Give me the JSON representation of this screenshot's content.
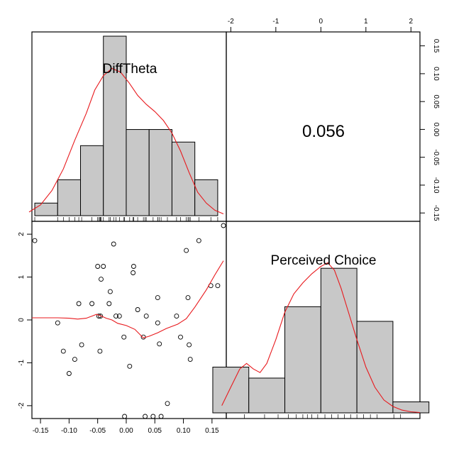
{
  "chart_data": {
    "type": "scatter-matrix",
    "variables": [
      "DiffTheta",
      "Perceived Choice"
    ],
    "correlation": "0.056",
    "x_axis_top": {
      "ticks": [
        -2,
        -1,
        0,
        1,
        2
      ],
      "labels": [
        "-2",
        "-1",
        "0",
        "1",
        "2"
      ],
      "range": [
        -2.1,
        2.2
      ]
    },
    "y_axis_right": {
      "ticks": [
        -0.15,
        -0.1,
        -0.05,
        0.0,
        0.05,
        0.1,
        0.15
      ],
      "labels": [
        "-0.15",
        "-0.10",
        "-0.05",
        "0.00",
        "0.05",
        "0.10",
        "0.15"
      ],
      "range": [
        -0.165,
        0.175
      ]
    },
    "x_axis_bottom": {
      "ticks": [
        -0.15,
        -0.1,
        -0.05,
        0.0,
        0.05,
        0.1,
        0.15
      ],
      "labels": [
        "-0.15",
        "-0.10",
        "-0.05",
        "0.00",
        "0.05",
        "0.10",
        "0.15"
      ],
      "range": [
        -0.165,
        0.175
      ]
    },
    "y_axis_left": {
      "ticks": [
        -2,
        -1,
        0,
        1,
        2
      ],
      "labels": [
        "-2",
        "-1",
        "0",
        "1",
        "2"
      ],
      "range": [
        -2.3,
        2.3
      ]
    },
    "hist_difftheta": {
      "breaks": [
        -0.16,
        -0.12,
        -0.08,
        -0.04,
        0.0,
        0.04,
        0.08,
        0.12,
        0.16
      ],
      "relative_heights": [
        0.07,
        0.2,
        0.39,
        1.0,
        0.48,
        0.48,
        0.41,
        0.2
      ]
    },
    "hist_perceived": {
      "breaks": [
        -2.4,
        -1.6,
        -0.8,
        0.0,
        0.8,
        1.6,
        2.4
      ],
      "relative_heights": [
        0.25,
        0.19,
        0.58,
        0.79,
        0.5,
        0.06
      ]
    },
    "points": [
      [
        -0.16,
        1.85
      ],
      [
        -0.12,
        -0.07
      ],
      [
        -0.11,
        -0.73
      ],
      [
        -0.1,
        -1.25
      ],
      [
        -0.09,
        -0.92
      ],
      [
        -0.083,
        0.38
      ],
      [
        -0.078,
        -0.58
      ],
      [
        -0.06,
        0.38
      ],
      [
        -0.05,
        1.25
      ],
      [
        -0.048,
        0.09
      ],
      [
        -0.046,
        -0.73
      ],
      [
        -0.045,
        0.09
      ],
      [
        -0.044,
        0.95
      ],
      [
        -0.04,
        1.25
      ],
      [
        -0.03,
        0.38
      ],
      [
        -0.028,
        0.66
      ],
      [
        -0.022,
        1.77
      ],
      [
        -0.018,
        0.09
      ],
      [
        -0.012,
        0.09
      ],
      [
        -0.004,
        -0.4
      ],
      [
        -0.003,
        -2.25
      ],
      [
        0.006,
        -1.08
      ],
      [
        0.012,
        1.1
      ],
      [
        0.013,
        1.25
      ],
      [
        0.02,
        0.24
      ],
      [
        0.03,
        -0.4
      ],
      [
        0.033,
        -2.25
      ],
      [
        0.035,
        0.09
      ],
      [
        0.047,
        -2.25
      ],
      [
        0.055,
        0.52
      ],
      [
        0.055,
        -0.07
      ],
      [
        0.058,
        -0.56
      ],
      [
        0.061,
        -2.25
      ],
      [
        0.072,
        -1.95
      ],
      [
        0.088,
        0.09
      ],
      [
        0.095,
        -0.4
      ],
      [
        0.105,
        1.62
      ],
      [
        0.108,
        0.52
      ],
      [
        0.11,
        -0.58
      ],
      [
        0.112,
        -0.92
      ],
      [
        0.127,
        1.85
      ],
      [
        0.148,
        0.8
      ],
      [
        0.16,
        0.8
      ],
      [
        0.17,
        2.2
      ]
    ],
    "rug_difftheta": [
      -0.16,
      -0.12,
      -0.11,
      -0.1,
      -0.09,
      -0.083,
      -0.078,
      -0.06,
      -0.05,
      -0.048,
      -0.046,
      -0.045,
      -0.044,
      -0.04,
      -0.03,
      -0.028,
      -0.022,
      -0.018,
      -0.012,
      -0.004,
      -0.003,
      0.006,
      0.012,
      0.013,
      0.02,
      0.03,
      0.033,
      0.035,
      0.047,
      0.055,
      0.055,
      0.058,
      0.061,
      0.072,
      0.088,
      0.095,
      0.105,
      0.108,
      0.11,
      0.112,
      0.127,
      0.148,
      0.16
    ],
    "rug_perceived": [
      -1.7,
      -1.25,
      -0.95,
      -0.72,
      -0.55,
      -0.4,
      -0.3,
      -0.2,
      -0.07,
      0.09,
      0.24,
      0.38,
      0.52,
      0.66,
      0.8,
      0.95,
      1.1,
      1.25,
      1.62,
      1.77
    ],
    "density_difftheta": [
      [
        -0.17,
        0.02
      ],
      [
        -0.15,
        0.06
      ],
      [
        -0.13,
        0.14
      ],
      [
        -0.11,
        0.26
      ],
      [
        -0.09,
        0.42
      ],
      [
        -0.07,
        0.57
      ],
      [
        -0.055,
        0.7
      ],
      [
        -0.04,
        0.78
      ],
      [
        -0.025,
        0.82
      ],
      [
        -0.01,
        0.8
      ],
      [
        0.005,
        0.74
      ],
      [
        0.02,
        0.67
      ],
      [
        0.035,
        0.62
      ],
      [
        0.05,
        0.58
      ],
      [
        0.065,
        0.53
      ],
      [
        0.08,
        0.46
      ],
      [
        0.095,
        0.36
      ],
      [
        0.11,
        0.24
      ],
      [
        0.125,
        0.13
      ],
      [
        0.14,
        0.07
      ],
      [
        0.155,
        0.03
      ],
      [
        0.17,
        0.01
      ]
    ],
    "density_perceived": [
      [
        -2.2,
        0.04
      ],
      [
        -2.0,
        0.14
      ],
      [
        -1.8,
        0.24
      ],
      [
        -1.65,
        0.27
      ],
      [
        -1.5,
        0.24
      ],
      [
        -1.35,
        0.22
      ],
      [
        -1.2,
        0.27
      ],
      [
        -1.0,
        0.4
      ],
      [
        -0.8,
        0.55
      ],
      [
        -0.6,
        0.65
      ],
      [
        -0.4,
        0.71
      ],
      [
        -0.2,
        0.76
      ],
      [
        0.0,
        0.8
      ],
      [
        0.15,
        0.82
      ],
      [
        0.3,
        0.78
      ],
      [
        0.45,
        0.68
      ],
      [
        0.6,
        0.56
      ],
      [
        0.8,
        0.4
      ],
      [
        1.0,
        0.25
      ],
      [
        1.2,
        0.14
      ],
      [
        1.4,
        0.07
      ],
      [
        1.6,
        0.035
      ],
      [
        1.8,
        0.015
      ],
      [
        2.0,
        0.006
      ],
      [
        2.2,
        0.002
      ]
    ],
    "smooth_line": [
      [
        -0.165,
        0.05
      ],
      [
        -0.14,
        0.05
      ],
      [
        -0.12,
        0.05
      ],
      [
        -0.1,
        0.04
      ],
      [
        -0.085,
        0.02
      ],
      [
        -0.07,
        0.04
      ],
      [
        -0.06,
        0.09
      ],
      [
        -0.052,
        0.13
      ],
      [
        -0.045,
        0.1
      ],
      [
        -0.035,
        0.04
      ],
      [
        -0.025,
        0.0
      ],
      [
        -0.015,
        -0.08
      ],
      [
        0.0,
        -0.13
      ],
      [
        0.015,
        -0.22
      ],
      [
        0.03,
        -0.42
      ],
      [
        0.04,
        -0.38
      ],
      [
        0.055,
        -0.3
      ],
      [
        0.07,
        -0.2
      ],
      [
        0.09,
        -0.1
      ],
      [
        0.105,
        0.03
      ],
      [
        0.12,
        0.3
      ],
      [
        0.14,
        0.7
      ],
      [
        0.155,
        1.05
      ],
      [
        0.17,
        1.38
      ]
    ]
  }
}
